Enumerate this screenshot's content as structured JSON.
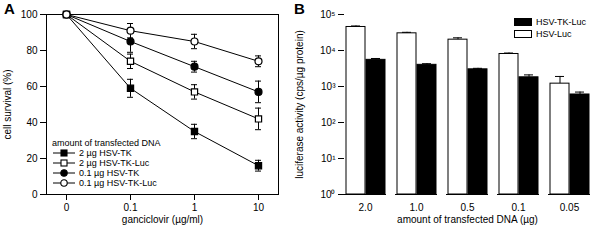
{
  "chart_data": [
    {
      "type": "line",
      "title": "A",
      "x_label": "ganciclovir (µg/ml)",
      "y_label": "cell survival (%)",
      "categories": [
        "0",
        "0.1",
        "1",
        "10"
      ],
      "ylim": [
        0,
        100
      ],
      "yticks": [
        0,
        20,
        40,
        60,
        80,
        100
      ],
      "grid": false,
      "legend": "lower left",
      "legend_title": "amount of transfected DNA",
      "series": [
        {
          "name": "2 µg HSV-TK",
          "color": "#000000",
          "marker": "square",
          "line_style": "solid",
          "values": [
            100,
            59,
            35,
            16
          ],
          "errors": [
            0,
            5,
            4,
            3
          ]
        },
        {
          "name": "2 µg HSV-TK-Luc",
          "color": "#000000",
          "marker": "square-open",
          "line_style": "solid",
          "values": [
            100,
            74,
            57,
            42
          ],
          "errors": [
            0,
            4,
            4,
            6
          ]
        },
        {
          "name": "0.1 µg HSV-TK",
          "color": "#000000",
          "marker": "circle",
          "line_style": "solid",
          "values": [
            100,
            85,
            71,
            57
          ],
          "errors": [
            0,
            6,
            3,
            6
          ]
        },
        {
          "name": "0.1 µg HSV-TK-Luc",
          "color": "#000000",
          "marker": "circle-open",
          "line_style": "solid",
          "values": [
            100,
            91,
            85,
            74
          ],
          "errors": [
            0,
            4,
            4,
            3
          ]
        }
      ]
    },
    {
      "type": "bar",
      "title": "B",
      "x_label": "amount of transfected DNA (µg)",
      "y_label": "luciferase activity (cps/µg protein)",
      "categories": [
        "2.0",
        "1.0",
        "0.5",
        "0.1",
        "0.05"
      ],
      "log": "y",
      "ylim": [
        1,
        100000
      ],
      "yticks": [
        {
          "value": 1,
          "label": "10⁰"
        },
        {
          "value": 10,
          "label": "10¹"
        },
        {
          "value": 100,
          "label": "10²"
        },
        {
          "value": 1000,
          "label": "10³"
        },
        {
          "value": 10000,
          "label": "10⁴"
        },
        {
          "value": 100000,
          "label": "10⁵"
        }
      ],
      "grid": false,
      "legend": "upper right",
      "series": [
        {
          "name": "HSV-TK-Luc",
          "color": "#000000",
          "values": [
            5500,
            4000,
            3000,
            1800,
            600
          ],
          "errors": [
            500,
            300,
            200,
            300,
            100
          ]
        },
        {
          "name": "HSV-Luc",
          "color": "#ffffff",
          "values": [
            45000,
            30000,
            20000,
            8000,
            1200
          ],
          "errors": [
            3000,
            2000,
            2500,
            500,
            700
          ]
        }
      ]
    }
  ]
}
